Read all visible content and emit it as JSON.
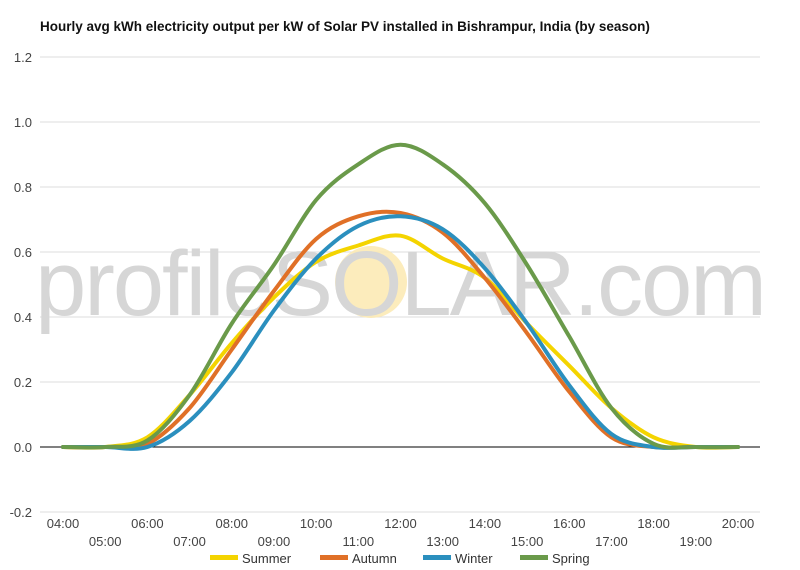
{
  "chart_data": {
    "type": "line",
    "title": "Hourly avg kWh electricity output per kW of Solar PV installed in Bishrampur, India (by season)",
    "xlabel": "",
    "ylabel": "",
    "ylim": [
      -0.2,
      1.2
    ],
    "yticks": [
      "-0.2",
      "0.0",
      "0.2",
      "0.4",
      "0.6",
      "0.8",
      "1.0",
      "1.2"
    ],
    "categories": [
      "04:00",
      "05:00",
      "06:00",
      "07:00",
      "08:00",
      "09:00",
      "10:00",
      "11:00",
      "12:00",
      "13:00",
      "14:00",
      "15:00",
      "16:00",
      "17:00",
      "18:00",
      "19:00",
      "20:00"
    ],
    "grid": true,
    "legend_position": "bottom",
    "series": [
      {
        "name": "Summer",
        "color": "#f4d400",
        "values": [
          0.0,
          0.0,
          0.03,
          0.16,
          0.32,
          0.46,
          0.57,
          0.62,
          0.65,
          0.58,
          0.52,
          0.38,
          0.25,
          0.12,
          0.03,
          0.0,
          0.0
        ]
      },
      {
        "name": "Autumn",
        "color": "#e07027",
        "values": [
          0.0,
          0.0,
          0.01,
          0.12,
          0.3,
          0.48,
          0.64,
          0.71,
          0.72,
          0.66,
          0.52,
          0.35,
          0.17,
          0.03,
          0.0,
          0.0,
          0.0
        ]
      },
      {
        "name": "Winter",
        "color": "#2b8fbe",
        "values": [
          0.0,
          0.0,
          0.0,
          0.08,
          0.23,
          0.42,
          0.58,
          0.68,
          0.71,
          0.67,
          0.55,
          0.38,
          0.19,
          0.04,
          0.0,
          0.0,
          0.0
        ]
      },
      {
        "name": "Spring",
        "color": "#6a9a4a",
        "values": [
          0.0,
          0.0,
          0.02,
          0.16,
          0.38,
          0.56,
          0.76,
          0.87,
          0.93,
          0.87,
          0.75,
          0.56,
          0.34,
          0.12,
          0.01,
          0.0,
          0.0
        ]
      }
    ]
  },
  "watermark": "profileSOLAR.com"
}
